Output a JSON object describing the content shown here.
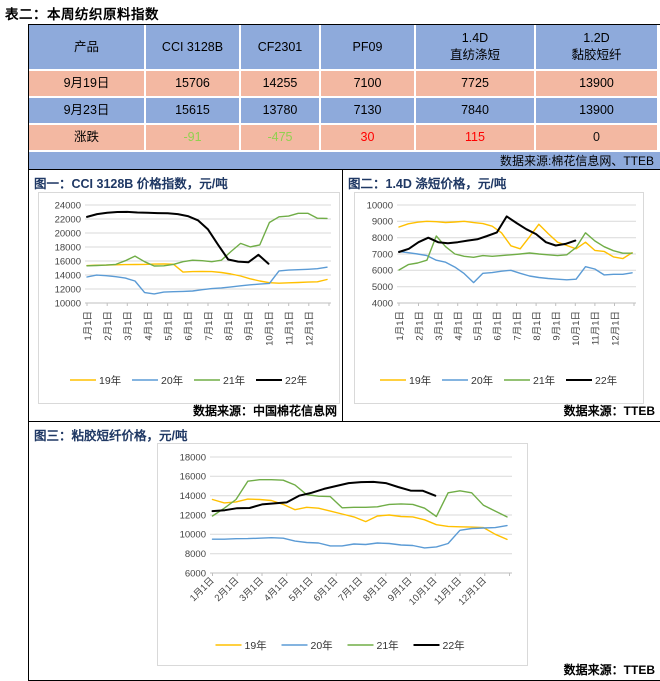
{
  "page_title": "表二：本周纺织原料指数",
  "colors": {
    "header_blue": "#8EAADB",
    "row_pink": "#F3B8A2",
    "up_red": "#FF0000",
    "down_green": "#92D050",
    "title_navy": "#1F3864"
  },
  "table": {
    "col_headers": [
      [
        "产品"
      ],
      [
        "CCI 3128B"
      ],
      [
        "CF2301"
      ],
      [
        "PF09"
      ],
      [
        "1.4D",
        "直纺涤短"
      ],
      [
        "1.2D",
        "黏胶短纤"
      ]
    ],
    "rows": [
      {
        "label": "9月19日",
        "values": [
          "15706",
          "14255",
          "7100",
          "7725",
          "13900"
        ]
      },
      {
        "label": "9月23日",
        "values": [
          "15615",
          "13780",
          "7130",
          "7840",
          "13900"
        ]
      },
      {
        "label": "涨跌",
        "values": [
          "-91",
          "-475",
          "30",
          "115",
          "0"
        ],
        "value_colors": [
          "down",
          "down",
          "up",
          "up",
          "flat"
        ]
      }
    ],
    "source": "数据来源:棉花信息网、TTEB"
  },
  "chart_data": [
    {
      "type": "line",
      "title": "图一：CCI 3128B 价格指数，元/吨",
      "source": "数据来源：中国棉花信息网",
      "ylabel": "元/吨",
      "ylim": [
        10000,
        24000
      ],
      "ytick_step": 2000,
      "grid": true,
      "legend_position": "bottom",
      "x_tick_labels": [
        "1月1日",
        "2月1日",
        "3月1日",
        "4月1日",
        "5月1日",
        "6月1日",
        "7月1日",
        "8月1日",
        "9月1日",
        "10月1日",
        "11月1日",
        "12月1日"
      ],
      "x_label_rotation": -90,
      "series": [
        {
          "name": "19年",
          "color": "#FFC000",
          "x_range": [
            1,
            12.9
          ],
          "values": [
            15350,
            15400,
            15420,
            15450,
            15480,
            15500,
            15520,
            15560,
            15580,
            15550,
            14420,
            14480,
            14520,
            14480,
            14350,
            14150,
            13850,
            13450,
            13150,
            12900,
            12830,
            12880,
            12930,
            12980,
            13030,
            13350
          ]
        },
        {
          "name": "20年",
          "color": "#5B9BD5",
          "x_range": [
            1,
            12.9
          ],
          "values": [
            13720,
            13980,
            13900,
            13760,
            13560,
            13150,
            11480,
            11300,
            11560,
            11620,
            11660,
            11720,
            11900,
            12060,
            12160,
            12300,
            12450,
            12600,
            12700,
            12800,
            14580,
            14700,
            14760,
            14820,
            14900,
            15120
          ]
        },
        {
          "name": "21年",
          "color": "#70AD47",
          "x_range": [
            1,
            12.9
          ],
          "values": [
            15320,
            15360,
            15420,
            15520,
            16050,
            16700,
            15900,
            15280,
            15320,
            15520,
            15900,
            16120,
            16050,
            15900,
            16120,
            17350,
            18520,
            18020,
            18300,
            21500,
            22320,
            22420,
            22820,
            22820,
            22120,
            22080
          ]
        },
        {
          "name": "22年",
          "color": "#000000",
          "x_range": [
            1,
            10
          ],
          "line_width": 2,
          "values": [
            22300,
            22700,
            22900,
            23000,
            23020,
            22930,
            22880,
            22840,
            22820,
            22700,
            22420,
            21820,
            20520,
            18320,
            16220,
            15920,
            15820,
            16880,
            15620
          ]
        }
      ]
    },
    {
      "type": "line",
      "title": "图二：1.4D 涤短价格，元/吨",
      "source": "数据来源：TTEB",
      "ylabel": "元/吨",
      "ylim": [
        4000,
        10000
      ],
      "ytick_step": 1000,
      "grid": true,
      "legend_position": "bottom",
      "x_tick_labels": [
        "1月1日",
        "2月1日",
        "3月1日",
        "4月1日",
        "5月1日",
        "6月1日",
        "7月1日",
        "8月1日",
        "9月1日",
        "10月1日",
        "11月1日",
        "12月1日"
      ],
      "x_label_rotation": -90,
      "series": [
        {
          "name": "19年",
          "color": "#FFC000",
          "x_range": [
            1,
            12.9
          ],
          "values": [
            8650,
            8850,
            8950,
            9000,
            8980,
            8930,
            8960,
            9000,
            8920,
            8860,
            8700,
            8300,
            7500,
            7320,
            8050,
            8820,
            8250,
            7720,
            7520,
            7320,
            7720,
            7220,
            7160,
            6820,
            6720,
            7080
          ]
        },
        {
          "name": "20年",
          "color": "#5B9BD5",
          "x_range": [
            1,
            12.9
          ],
          "values": [
            7150,
            7080,
            7000,
            6900,
            6620,
            6500,
            6200,
            5800,
            5250,
            5820,
            5860,
            5950,
            6000,
            5820,
            5650,
            5560,
            5500,
            5460,
            5420,
            5460,
            6220,
            6080,
            5720,
            5760,
            5760,
            5850
          ]
        },
        {
          "name": "21年",
          "color": "#70AD47",
          "x_range": [
            1,
            12.9
          ],
          "values": [
            6020,
            6350,
            6450,
            6620,
            8100,
            7450,
            7000,
            6860,
            6800,
            6900,
            6860,
            6900,
            6950,
            7000,
            7060,
            7000,
            6950,
            6900,
            6950,
            7400,
            8300,
            7800,
            7450,
            7200,
            7050,
            7050
          ]
        },
        {
          "name": "22年",
          "color": "#000000",
          "x_range": [
            1,
            10
          ],
          "line_width": 2,
          "values": [
            7120,
            7320,
            7720,
            8000,
            7720,
            7660,
            7720,
            7820,
            7900,
            8100,
            8320,
            9300,
            8900,
            8520,
            8220,
            7720,
            7520,
            7620,
            7820
          ]
        }
      ]
    },
    {
      "type": "line",
      "title": "图三：粘胶短纤价格，元/吨",
      "source": "数据来源：TTEB",
      "ylabel": "元/吨",
      "ylim": [
        6000,
        18000
      ],
      "ytick_step": 2000,
      "grid": true,
      "legend_position": "bottom",
      "x_tick_labels": [
        "1月1日",
        "2月1日",
        "3月1日",
        "4月1日",
        "5月1日",
        "6月1日",
        "7月1日",
        "8月1日",
        "9月1日",
        "10月1日",
        "11月1日",
        "12月1日"
      ],
      "x_label_rotation": -45,
      "series": [
        {
          "name": "19年",
          "color": "#FFC000",
          "x_range": [
            1,
            12.9
          ],
          "values": [
            13600,
            13250,
            13350,
            13650,
            13600,
            13500,
            13100,
            12550,
            12800,
            12700,
            12400,
            12100,
            11800,
            11320,
            11900,
            12000,
            11850,
            11800,
            11500,
            11000,
            10820,
            10780,
            10750,
            10700,
            10000,
            9480
          ]
        },
        {
          "name": "20年",
          "color": "#5B9BD5",
          "x_range": [
            1,
            12.9
          ],
          "values": [
            9500,
            9500,
            9550,
            9560,
            9600,
            9650,
            9600,
            9300,
            9150,
            9100,
            8800,
            8800,
            9000,
            8950,
            9100,
            9050,
            8900,
            8850,
            8600,
            8700,
            9050,
            10420,
            10600,
            10650,
            10700,
            10900
          ]
        },
        {
          "name": "21年",
          "color": "#70AD47",
          "x_range": [
            1,
            12.9
          ],
          "values": [
            11900,
            12700,
            13600,
            15500,
            15650,
            15650,
            15600,
            15100,
            14100,
            13950,
            13900,
            12750,
            12800,
            12800,
            12850,
            13100,
            13150,
            13100,
            12700,
            11850,
            14300,
            14500,
            14300,
            13000,
            12400,
            11800
          ]
        },
        {
          "name": "22年",
          "color": "#000000",
          "x_range": [
            1,
            10
          ],
          "line_width": 2,
          "values": [
            12400,
            12500,
            12700,
            12720,
            13100,
            13200,
            13300,
            14000,
            14300,
            14700,
            15000,
            15300,
            15400,
            15420,
            15300,
            14900,
            14520,
            14500,
            14000
          ]
        }
      ]
    }
  ]
}
